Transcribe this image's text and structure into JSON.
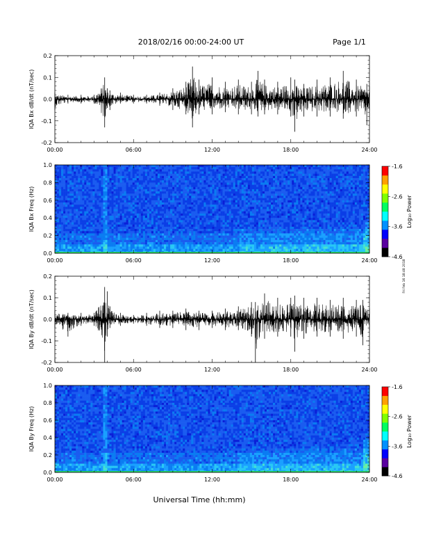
{
  "header": {
    "date_range": "2018/02/16  00:00-24:00 UT",
    "page": "Page 1/1"
  },
  "x_axis": {
    "title": "Universal Time (hh:mm)",
    "ticks": [
      "00:00",
      "06:00",
      "12:00",
      "18:00",
      "24:00"
    ]
  },
  "colorbar": {
    "label": "Log₁₀ Power",
    "ticks": [
      "-1.6",
      "-2.6",
      "-3.6",
      "-4.6"
    ],
    "range": [
      -4.6,
      -1.6
    ],
    "colors": [
      "#000000",
      "#5a00a0",
      "#0000ff",
      "#0090ff",
      "#00ffff",
      "#00ff60",
      "#80ff00",
      "#ffff00",
      "#ffa000",
      "#ff0000"
    ]
  },
  "stamp": "Fri Feb 16 18:48 2018",
  "chart_data": [
    {
      "type": "line",
      "id": "bx-waveform",
      "ylabel": "IQA Bx dB/dt (nT/sec)",
      "ylim": [
        -0.2,
        0.2
      ],
      "xlim": [
        0,
        24
      ],
      "yticks": [
        "0.2",
        "0.1",
        "0.0",
        "-0.1",
        "-0.2"
      ],
      "x": [
        0,
        1,
        2,
        3,
        3.8,
        4,
        4.2,
        5,
        6,
        7,
        8,
        9,
        10,
        10.5,
        11,
        12,
        13,
        14,
        15,
        15.5,
        16,
        17,
        18,
        18.3,
        19,
        20,
        21,
        22,
        23,
        23.8,
        24
      ],
      "y_max": [
        0.03,
        0.02,
        0.02,
        0.02,
        0.1,
        0.05,
        0.04,
        0.03,
        0.02,
        0.02,
        0.03,
        0.05,
        0.08,
        0.15,
        0.09,
        0.1,
        0.08,
        0.09,
        0.08,
        0.13,
        0.09,
        0.08,
        0.1,
        0.09,
        0.07,
        0.09,
        0.1,
        0.13,
        0.09,
        0.07,
        0.06
      ],
      "y_min": [
        -0.05,
        -0.02,
        -0.02,
        -0.02,
        -0.13,
        -0.04,
        -0.05,
        -0.02,
        -0.02,
        -0.02,
        -0.03,
        -0.05,
        -0.07,
        -0.13,
        -0.07,
        -0.07,
        -0.06,
        -0.07,
        -0.07,
        -0.08,
        -0.07,
        -0.07,
        -0.08,
        -0.15,
        -0.08,
        -0.08,
        -0.08,
        -0.09,
        -0.08,
        -0.12,
        -0.05
      ]
    },
    {
      "type": "heatmap",
      "id": "bx-spectrogram",
      "ylabel": "IQA Bx Freq (Hz)",
      "ylim": [
        0.0,
        1.0
      ],
      "xlim": [
        0,
        24
      ],
      "yticks": [
        "1.0",
        "0.8",
        "0.6",
        "0.4",
        "0.2",
        "0.0"
      ],
      "colorbar_range": [
        -4.6,
        -1.6
      ]
    },
    {
      "type": "line",
      "id": "by-waveform",
      "ylabel": "IQA By dB/dt (nT/sec)",
      "ylim": [
        -0.2,
        0.2
      ],
      "xlim": [
        0,
        24
      ],
      "yticks": [
        "0.2",
        "0.1",
        "0.0",
        "-0.1",
        "-0.2"
      ],
      "x": [
        0,
        1,
        2,
        3,
        3.8,
        4,
        4.2,
        5,
        6,
        7,
        8,
        9,
        10,
        11,
        12,
        13,
        14,
        15,
        15.3,
        16,
        17,
        18,
        18.3,
        19,
        20,
        21,
        22,
        23,
        23.5,
        24
      ],
      "y_max": [
        0.04,
        0.03,
        0.03,
        0.03,
        0.15,
        0.13,
        0.06,
        0.03,
        0.02,
        0.03,
        0.04,
        0.04,
        0.05,
        0.04,
        0.04,
        0.05,
        0.06,
        0.08,
        0.08,
        0.12,
        0.1,
        0.1,
        0.11,
        0.1,
        0.1,
        0.09,
        0.1,
        0.09,
        0.09,
        0.05
      ],
      "y_min": [
        -0.04,
        -0.08,
        -0.03,
        -0.03,
        -0.2,
        -0.08,
        -0.04,
        -0.03,
        -0.02,
        -0.03,
        -0.04,
        -0.04,
        -0.05,
        -0.05,
        -0.04,
        -0.05,
        -0.05,
        -0.08,
        -0.2,
        -0.09,
        -0.08,
        -0.08,
        -0.15,
        -0.09,
        -0.08,
        -0.08,
        -0.09,
        -0.08,
        -0.12,
        -0.05
      ]
    },
    {
      "type": "heatmap",
      "id": "by-spectrogram",
      "ylabel": "IQA By Freq (Hz)",
      "ylim": [
        0.0,
        1.0
      ],
      "xlim": [
        0,
        24
      ],
      "yticks": [
        "1.0",
        "0.8",
        "0.6",
        "0.4",
        "0.2",
        "0.0"
      ],
      "colorbar_range": [
        -4.6,
        -1.6
      ]
    }
  ]
}
